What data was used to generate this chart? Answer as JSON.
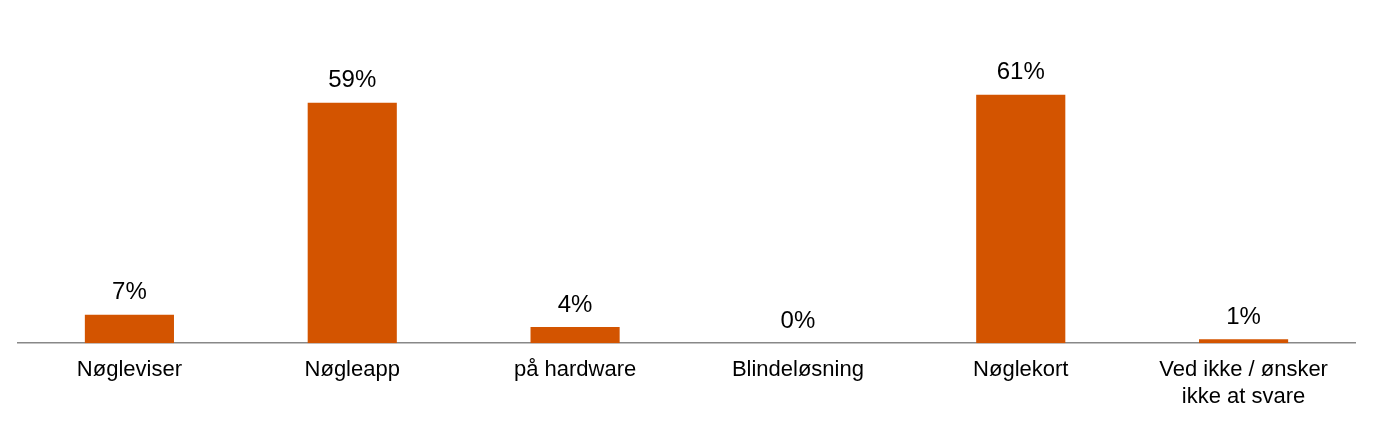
{
  "chart_data": {
    "type": "bar",
    "categories": [
      "Nøgleviser",
      "Nøgleapp",
      "på hardware",
      "Blindeløsning",
      "Nøglekort",
      "Ved ikke / ønsker ikke at svare"
    ],
    "values": [
      7,
      59,
      4,
      0,
      61,
      1
    ],
    "value_labels": [
      "7%",
      "59%",
      "4%",
      "0%",
      "61%",
      "1%"
    ],
    "color": "#d35400",
    "grid": false,
    "legend": false
  }
}
